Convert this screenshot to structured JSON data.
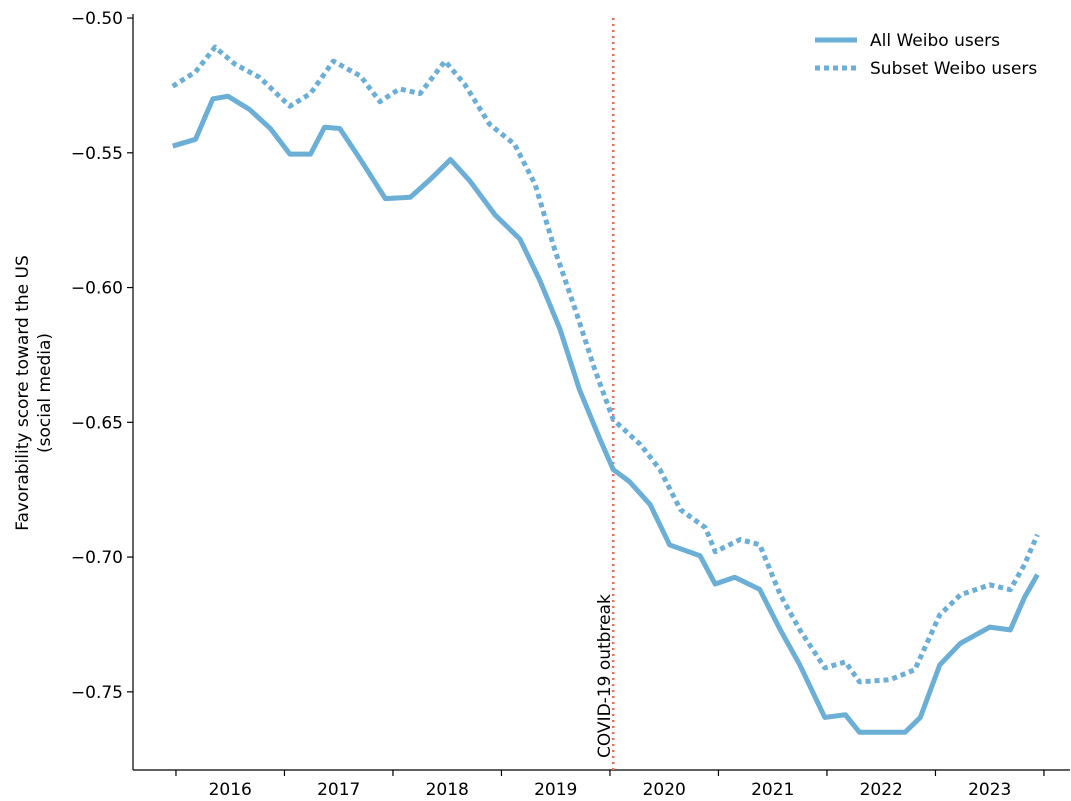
{
  "chart_data": {
    "type": "line",
    "ylabel": [
      "Favorability score toward the US",
      "(social media)"
    ],
    "xlim": [
      2015.604,
      2024.24
    ],
    "xticks": [
      2016,
      2017,
      2018,
      2019,
      2020,
      2021,
      2022,
      2023,
      2024
    ],
    "xtick_labels": [
      {
        "value": 2016.5,
        "label": "2016"
      },
      {
        "value": 2017.5,
        "label": "2017"
      },
      {
        "value": 2018.5,
        "label": "2018"
      },
      {
        "value": 2019.5,
        "label": "2019"
      },
      {
        "value": 2020.5,
        "label": "2020"
      },
      {
        "value": 2021.5,
        "label": "2021"
      },
      {
        "value": 2022.5,
        "label": "2022"
      },
      {
        "value": 2023.5,
        "label": "2023"
      }
    ],
    "ylim": [
      -0.779,
      -0.4985
    ],
    "yticks": [
      {
        "value": -0.5,
        "label": "−0.50"
      },
      {
        "value": -0.55,
        "label": "−0.55"
      },
      {
        "value": -0.6,
        "label": "−0.60"
      },
      {
        "value": -0.65,
        "label": "−0.65"
      },
      {
        "value": -0.7,
        "label": "−0.70"
      },
      {
        "value": -0.75,
        "label": "−0.75"
      }
    ],
    "legend": "upper right",
    "series": [
      {
        "name": "All Weibo users",
        "color": "#6baed6",
        "style": "solid",
        "x": [
          2015.97,
          2016.18,
          2016.34,
          2016.48,
          2016.68,
          2016.87,
          2017.05,
          2017.24,
          2017.37,
          2017.51,
          2017.7,
          2017.93,
          2018.16,
          2018.34,
          2018.53,
          2018.71,
          2018.94,
          2019.17,
          2019.35,
          2019.54,
          2019.72,
          2019.91,
          2020.03,
          2020.18,
          2020.37,
          2020.55,
          2020.83,
          2020.97,
          2021.15,
          2021.38,
          2021.57,
          2021.75,
          2021.98,
          2022.17,
          2022.3,
          2022.49,
          2022.72,
          2022.86,
          2023.04,
          2023.23,
          2023.5,
          2023.69,
          2023.82,
          2023.94
        ],
        "values": [
          -0.5475,
          -0.545,
          -0.53,
          -0.529,
          -0.534,
          -0.541,
          -0.5505,
          -0.5505,
          -0.5405,
          -0.541,
          -0.5525,
          -0.567,
          -0.5665,
          -0.56,
          -0.5525,
          -0.5605,
          -0.573,
          -0.582,
          -0.597,
          -0.6155,
          -0.638,
          -0.6565,
          -0.6675,
          -0.672,
          -0.6805,
          -0.6955,
          -0.6995,
          -0.71,
          -0.7075,
          -0.712,
          -0.727,
          -0.74,
          -0.7595,
          -0.7585,
          -0.765,
          -0.765,
          -0.765,
          -0.7595,
          -0.74,
          -0.732,
          -0.726,
          -0.727,
          -0.715,
          -0.7065
        ]
      },
      {
        "name": "Subset Weibo users",
        "color": "#6baed6",
        "style": "dotted",
        "x": [
          2015.97,
          2016.18,
          2016.36,
          2016.54,
          2016.77,
          2017.05,
          2017.24,
          2017.45,
          2017.7,
          2017.88,
          2018.06,
          2018.25,
          2018.48,
          2018.66,
          2018.89,
          2019.12,
          2019.31,
          2019.49,
          2019.68,
          2019.86,
          2020.03,
          2020.28,
          2020.46,
          2020.65,
          2020.88,
          2020.97,
          2021.2,
          2021.38,
          2021.57,
          2021.75,
          2021.98,
          2022.17,
          2022.3,
          2022.58,
          2022.81,
          2023.04,
          2023.23,
          2023.5,
          2023.69,
          2023.82,
          2023.94
        ],
        "values": [
          -0.5253,
          -0.52,
          -0.5108,
          -0.517,
          -0.522,
          -0.5327,
          -0.528,
          -0.516,
          -0.5215,
          -0.531,
          -0.5263,
          -0.528,
          -0.516,
          -0.5245,
          -0.5394,
          -0.5468,
          -0.5617,
          -0.5858,
          -0.6081,
          -0.6304,
          -0.649,
          -0.6582,
          -0.6675,
          -0.6824,
          -0.6891,
          -0.698,
          -0.6935,
          -0.6954,
          -0.714,
          -0.727,
          -0.7411,
          -0.7389,
          -0.7463,
          -0.7455,
          -0.7418,
          -0.7214,
          -0.714,
          -0.7103,
          -0.7121,
          -0.7028,
          -0.6917
        ]
      }
    ],
    "annotations": [
      {
        "text": "COVID-19 outbreak",
        "x": 2020.03,
        "color": "#ef6c57"
      }
    ]
  }
}
